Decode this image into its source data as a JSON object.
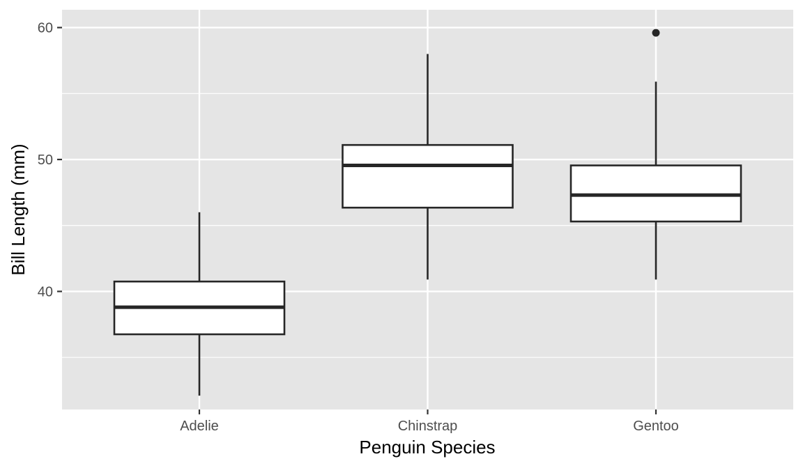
{
  "chart_data": {
    "type": "boxplot",
    "title": "",
    "xlabel": "Penguin Species",
    "ylabel": "Bill Length (mm)",
    "categories": [
      "Adelie",
      "Chinstrap",
      "Gentoo"
    ],
    "boxes": [
      {
        "category": "Adelie",
        "whisker_low": 32.1,
        "q1": 36.75,
        "median": 38.8,
        "q3": 40.75,
        "whisker_high": 46.0,
        "outliers": []
      },
      {
        "category": "Chinstrap",
        "whisker_low": 40.9,
        "q1": 46.35,
        "median": 49.55,
        "q3": 51.1,
        "whisker_high": 58.0,
        "outliers": []
      },
      {
        "category": "Gentoo",
        "whisker_low": 40.9,
        "q1": 45.3,
        "median": 47.3,
        "q3": 49.55,
        "whisker_high": 55.9,
        "outliers": [
          59.6
        ]
      }
    ],
    "ylim": [
      31.05,
      61.35
    ],
    "yticks": [
      40,
      50,
      60
    ],
    "yticks_minor": [
      35,
      45,
      55
    ],
    "grid": true,
    "legend": "none",
    "colors": {
      "panel_background": "#e5e5e5",
      "grid": "#ffffff",
      "box_fill": "#ffffff",
      "box_stroke": "#262626",
      "outlier": "#262626",
      "tick_label": "#4d4d4d",
      "axis_title": "#000000"
    }
  }
}
